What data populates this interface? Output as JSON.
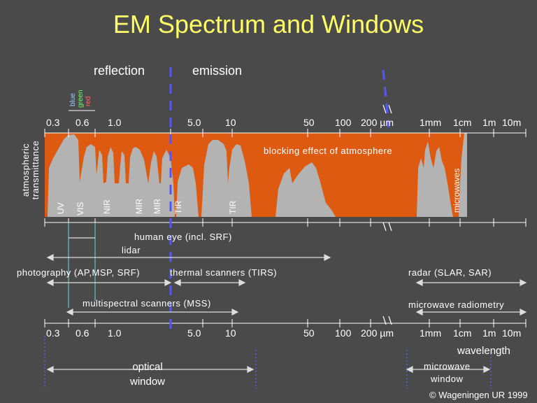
{
  "title": "EM Spectrum and Windows",
  "headers": {
    "reflection": "reflection",
    "emission": "emission"
  },
  "colors": {
    "background": "#4a4a4a",
    "title": "#ffff66",
    "atmosphere": "#dd5a10",
    "windows": "#b3b3b3",
    "dashed_divider": "#5555ff",
    "arrow_line": "#dddddd",
    "dotted_marker": "#6666ff"
  },
  "visible_colors": {
    "blue": "blue",
    "green": "green",
    "red": "red"
  },
  "top_ticks": [
    "0.3",
    "0.6",
    "1.0",
    "5.0",
    "10",
    "50",
    "100",
    "200 µm",
    "1mm",
    "1cm",
    "1m",
    "10m"
  ],
  "bottom_ticks": [
    "0.3",
    "0.6",
    "1.0",
    "5.0",
    "10",
    "50",
    "100",
    "200 µm",
    "1mm",
    "1cm",
    "1m",
    "10m"
  ],
  "y_axis_label": "atmospheric transmittance",
  "blocking_label": "blocking effect of atmosphere",
  "bands": {
    "uv": "UV",
    "vis": "VIS",
    "nir": "NIR",
    "mir1": "MIR",
    "mir2": "MIR",
    "tir1": "TIR",
    "tir2": "TIR",
    "microwaves": "microwaves"
  },
  "sensors": {
    "human_eye": "human eye (incl. SRF)",
    "lidar": "lidar",
    "photography": "photography (AP,MSP, SRF)",
    "thermal": "thermal scanners (TIRS)",
    "radar": "radar (SLAR, SAR)",
    "mss": "multispectral scanners (MSS)",
    "microwave_radiometry": "microwave radiometry"
  },
  "wavelength_label": "wavelength",
  "optical_window": {
    "line1": "optical",
    "line2": "window"
  },
  "microwave_window": {
    "line1": "microwave",
    "line2": "window"
  },
  "copyright": "© Wageningen UR 1999"
}
